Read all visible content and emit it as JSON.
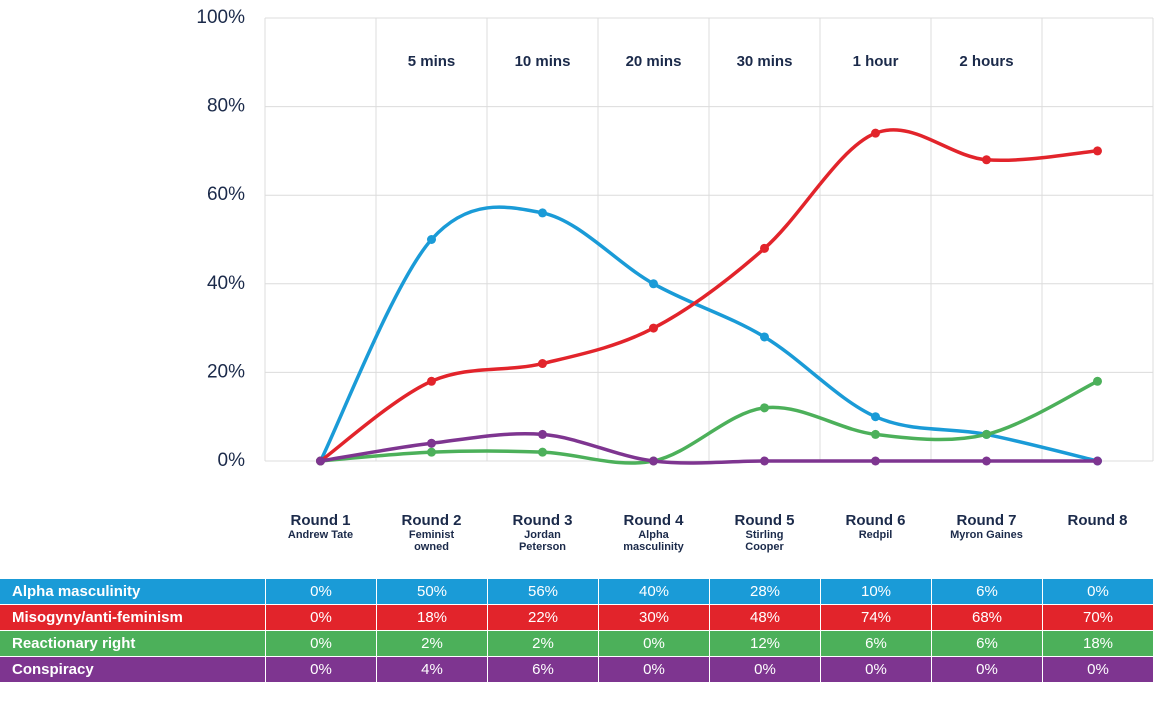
{
  "chart_data": {
    "type": "line",
    "categories": [
      "Round 1",
      "Round 2",
      "Round 3",
      "Round 4",
      "Round 5",
      "Round 6",
      "Round 7",
      "Round 8"
    ],
    "category_subtitles": [
      "Andrew Tate",
      "Feminist owned",
      "Jordan Peterson",
      "Alpha masculinity",
      "Stirling Cooper",
      "Redpil",
      "Myron Gaines",
      null
    ],
    "time_labels": [
      null,
      "5 mins",
      "10 mins",
      "20 mins",
      "30 mins",
      "1 hour",
      "2 hours",
      null
    ],
    "ylim": [
      0,
      100
    ],
    "yticks": [
      {
        "value": 0,
        "label": "0%"
      },
      {
        "value": 20,
        "label": "20%"
      },
      {
        "value": 40,
        "label": "40%"
      },
      {
        "value": 60,
        "label": "60%"
      },
      {
        "value": 80,
        "label": "80%"
      },
      {
        "value": 100,
        "label": "100%"
      }
    ],
    "grid": true,
    "series": [
      {
        "name": "Alpha masculinity",
        "color": "#1a9bd7",
        "values": [
          0,
          50,
          56,
          40,
          28,
          10,
          6,
          0
        ],
        "value_labels": [
          "0%",
          "50%",
          "56%",
          "40%",
          "28%",
          "10%",
          "6%",
          "0%"
        ]
      },
      {
        "name": "Misogyny/anti-feminism",
        "color": "#e2242b",
        "values": [
          0,
          18,
          22,
          30,
          48,
          74,
          68,
          70
        ],
        "value_labels": [
          "0%",
          "18%",
          "22%",
          "30%",
          "48%",
          "74%",
          "68%",
          "70%"
        ]
      },
      {
        "name": "Reactionary right",
        "color": "#4cb05a",
        "values": [
          0,
          2,
          2,
          0,
          12,
          6,
          6,
          18
        ],
        "value_labels": [
          "0%",
          "2%",
          "2%",
          "0%",
          "12%",
          "6%",
          "6%",
          "18%"
        ]
      },
      {
        "name": "Conspiracy",
        "color": "#7e3590",
        "values": [
          0,
          4,
          6,
          0,
          0,
          0,
          0,
          0
        ],
        "value_labels": [
          "0%",
          "4%",
          "6%",
          "0%",
          "0%",
          "0%",
          "0%",
          "0%"
        ]
      }
    ]
  }
}
